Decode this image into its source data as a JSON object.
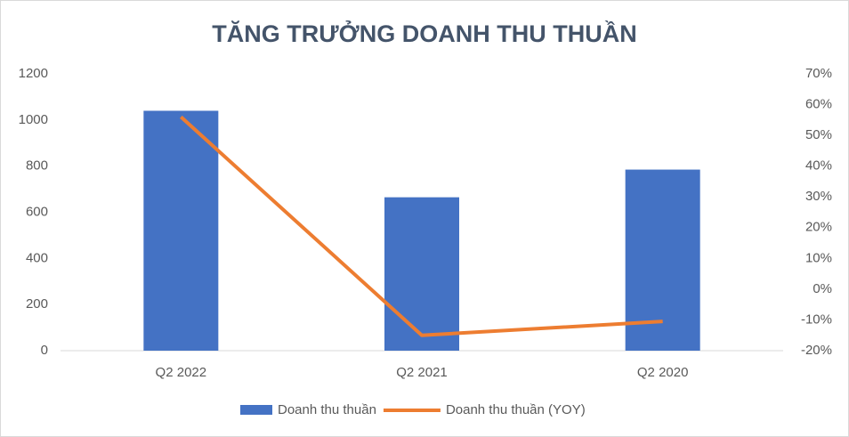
{
  "chart_data": {
    "type": "bar",
    "title": "TĂNG TRƯỞNG DOANH THU THUẦN",
    "categories": [
      "Q2 2022",
      "Q2 2021",
      "Q2 2020"
    ],
    "series": [
      {
        "name": "Doanh thu thuần",
        "type": "bar",
        "color": "#4472c4",
        "values": [
          1040,
          665,
          785
        ]
      },
      {
        "name": "Doanh thu thuần (YOY)",
        "type": "line",
        "axis": "y2",
        "color": "#ed7d31",
        "values": [
          56,
          -15,
          -10.5
        ]
      }
    ],
    "ylim": [
      0,
      1200
    ],
    "yticks": [
      0,
      200,
      400,
      600,
      800,
      1000,
      1200
    ],
    "y2lim": [
      -20,
      70
    ],
    "y2ticks": [
      {
        "value": -20,
        "label": "-20%"
      },
      {
        "value": -10,
        "label": "-10%"
      },
      {
        "value": 0,
        "label": "0%"
      },
      {
        "value": 10,
        "label": "10%"
      },
      {
        "value": 20,
        "label": "20%"
      },
      {
        "value": 30,
        "label": "30%"
      },
      {
        "value": 40,
        "label": "40%"
      },
      {
        "value": 50,
        "label": "50%"
      },
      {
        "value": 60,
        "label": "60%"
      },
      {
        "value": 70,
        "label": "70%"
      }
    ],
    "grid": false,
    "legend": "bottom"
  }
}
